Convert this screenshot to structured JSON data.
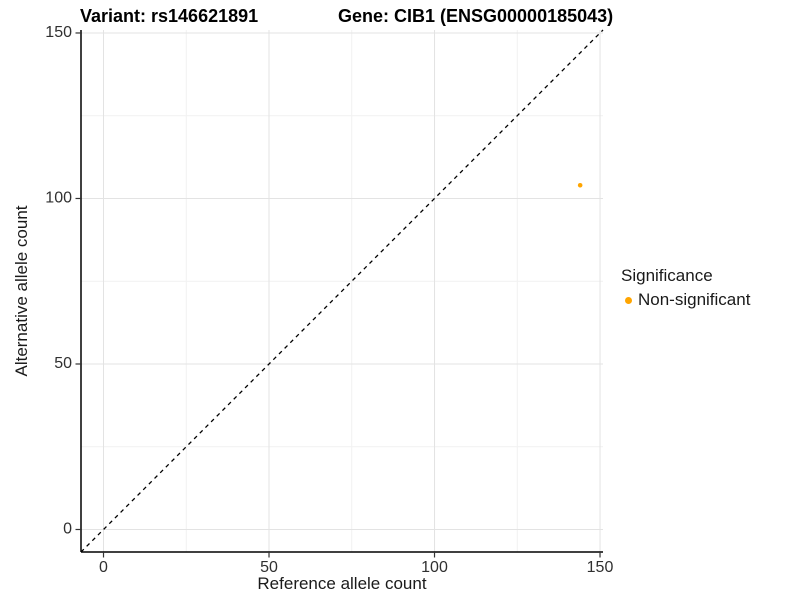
{
  "titles": {
    "variant": "Variant: rs146621891",
    "gene": "Gene: CIB1 (ENSG00000185043)"
  },
  "legend": {
    "title": "Significance",
    "items": [
      {
        "label": "Non-significant",
        "color": "#FFA500"
      }
    ]
  },
  "chart_data": {
    "type": "scatter",
    "title": "Variant: rs146621891 — Gene: CIB1 (ENSG00000185043)",
    "xlabel": "Reference allele count",
    "ylabel": "Alternative allele count",
    "xlim": [
      -6.8,
      150.9
    ],
    "ylim": [
      -6.8,
      150.9
    ],
    "x_major_ticks": [
      0,
      50,
      100,
      150
    ],
    "x_minor_ticks": [
      25,
      75,
      125
    ],
    "y_major_ticks": [
      0,
      50,
      100,
      150
    ],
    "y_minor_ticks": [
      25,
      75,
      125
    ],
    "grid": true,
    "legend_position": "right",
    "identity_line": {
      "style": "dashed",
      "color": "#000000"
    },
    "series": [
      {
        "name": "Non-significant",
        "color": "#FFA500",
        "points": [
          [
            144,
            104
          ]
        ]
      }
    ]
  },
  "style_colors": {
    "grid_major": "#E3E3E3",
    "grid_minor": "#F1F1F1",
    "axis_line": "#000000",
    "tick_mark": "#333333",
    "tick_text": "#303030"
  }
}
